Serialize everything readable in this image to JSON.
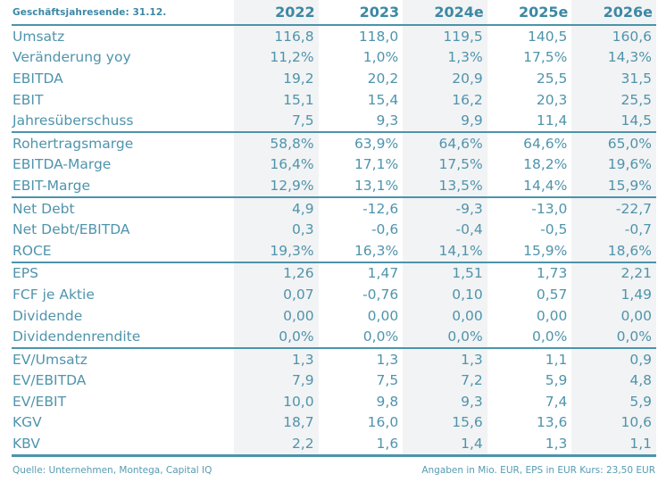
{
  "colors": {
    "accent_teal": "#4c93ab",
    "text_teal": "#4f94ac",
    "header_teal": "#3c88a4",
    "stripe_bg": "#f2f3f4",
    "page_bg": "#ffffff"
  },
  "table": {
    "corner_label": "Geschäftsjahresende: 31.12.",
    "columns": [
      "2022",
      "2023",
      "2024e",
      "2025e",
      "2026e"
    ],
    "sections": [
      {
        "rows": [
          {
            "label": "Umsatz",
            "values": [
              "116,8",
              "118,0",
              "119,5",
              "140,5",
              "160,6"
            ]
          },
          {
            "label": "Veränderung yoy",
            "values": [
              "11,2%",
              "1,0%",
              "1,3%",
              "17,5%",
              "14,3%"
            ]
          },
          {
            "label": "EBITDA",
            "values": [
              "19,2",
              "20,2",
              "20,9",
              "25,5",
              "31,5"
            ]
          },
          {
            "label": "EBIT",
            "values": [
              "15,1",
              "15,4",
              "16,2",
              "20,3",
              "25,5"
            ]
          },
          {
            "label": "Jahresüberschuss",
            "values": [
              "7,5",
              "9,3",
              "9,9",
              "11,4",
              "14,5"
            ]
          }
        ]
      },
      {
        "rows": [
          {
            "label": "Rohertragsmarge",
            "values": [
              "58,8%",
              "63,9%",
              "64,6%",
              "64,6%",
              "65,0%"
            ]
          },
          {
            "label": "EBITDA-Marge",
            "values": [
              "16,4%",
              "17,1%",
              "17,5%",
              "18,2%",
              "19,6%"
            ]
          },
          {
            "label": "EBIT-Marge",
            "values": [
              "12,9%",
              "13,1%",
              "13,5%",
              "14,4%",
              "15,9%"
            ]
          }
        ]
      },
      {
        "rows": [
          {
            "label": "Net Debt",
            "values": [
              "4,9",
              "-12,6",
              "-9,3",
              "-13,0",
              "-22,7"
            ]
          },
          {
            "label": "Net Debt/EBITDA",
            "values": [
              "0,3",
              "-0,6",
              "-0,4",
              "-0,5",
              "-0,7"
            ]
          },
          {
            "label": "ROCE",
            "values": [
              "19,3%",
              "16,3%",
              "14,1%",
              "15,9%",
              "18,6%"
            ]
          }
        ]
      },
      {
        "rows": [
          {
            "label": "EPS",
            "values": [
              "1,26",
              "1,47",
              "1,51",
              "1,73",
              "2,21"
            ]
          },
          {
            "label": "FCF je Aktie",
            "values": [
              "0,07",
              "-0,76",
              "0,10",
              "0,57",
              "1,49"
            ]
          },
          {
            "label": "Dividende",
            "values": [
              "0,00",
              "0,00",
              "0,00",
              "0,00",
              "0,00"
            ]
          },
          {
            "label": "Dividendenrendite",
            "values": [
              "0,0%",
              "0,0%",
              "0,0%",
              "0,0%",
              "0,0%"
            ]
          }
        ]
      },
      {
        "rows": [
          {
            "label": "EV/Umsatz",
            "values": [
              "1,3",
              "1,3",
              "1,3",
              "1,1",
              "0,9"
            ]
          },
          {
            "label": "EV/EBITDA",
            "values": [
              "7,9",
              "7,5",
              "7,2",
              "5,9",
              "4,8"
            ]
          },
          {
            "label": "EV/EBIT",
            "values": [
              "10,0",
              "9,8",
              "9,3",
              "7,4",
              "5,9"
            ]
          },
          {
            "label": "KGV",
            "values": [
              "18,7",
              "16,0",
              "15,6",
              "13,6",
              "10,6"
            ]
          },
          {
            "label": "KBV",
            "values": [
              "2,2",
              "1,6",
              "1,4",
              "1,3",
              "1,1"
            ]
          }
        ]
      }
    ]
  },
  "footer": {
    "left": "Quelle: Unternehmen, Montega, Capital IQ",
    "right": "Angaben in Mio. EUR, EPS in EUR Kurs: 23,50 EUR"
  },
  "chart_data": {
    "type": "table",
    "title": "Geschäftsjahresende: 31.12.",
    "columns": [
      "2022",
      "2023",
      "2024e",
      "2025e",
      "2026e"
    ],
    "rows": [
      [
        "Umsatz",
        "116,8",
        "118,0",
        "119,5",
        "140,5",
        "160,6"
      ],
      [
        "Veränderung yoy",
        "11,2%",
        "1,0%",
        "1,3%",
        "17,5%",
        "14,3%"
      ],
      [
        "EBITDA",
        "19,2",
        "20,2",
        "20,9",
        "25,5",
        "31,5"
      ],
      [
        "EBIT",
        "15,1",
        "15,4",
        "16,2",
        "20,3",
        "25,5"
      ],
      [
        "Jahresüberschuss",
        "7,5",
        "9,3",
        "9,9",
        "11,4",
        "14,5"
      ],
      [
        "Rohertragsmarge",
        "58,8%",
        "63,9%",
        "64,6%",
        "64,6%",
        "65,0%"
      ],
      [
        "EBITDA-Marge",
        "16,4%",
        "17,1%",
        "17,5%",
        "18,2%",
        "19,6%"
      ],
      [
        "EBIT-Marge",
        "12,9%",
        "13,1%",
        "13,5%",
        "14,4%",
        "15,9%"
      ],
      [
        "Net Debt",
        "4,9",
        "-12,6",
        "-9,3",
        "-13,0",
        "-22,7"
      ],
      [
        "Net Debt/EBITDA",
        "0,3",
        "-0,6",
        "-0,4",
        "-0,5",
        "-0,7"
      ],
      [
        "ROCE",
        "19,3%",
        "16,3%",
        "14,1%",
        "15,9%",
        "18,6%"
      ],
      [
        "EPS",
        "1,26",
        "1,47",
        "1,51",
        "1,73",
        "2,21"
      ],
      [
        "FCF je Aktie",
        "0,07",
        "-0,76",
        "0,10",
        "0,57",
        "1,49"
      ],
      [
        "Dividende",
        "0,00",
        "0,00",
        "0,00",
        "0,00",
        "0,00"
      ],
      [
        "Dividendenrendite",
        "0,0%",
        "0,0%",
        "0,0%",
        "0,0%",
        "0,0%"
      ],
      [
        "EV/Umsatz",
        "1,3",
        "1,3",
        "1,3",
        "1,1",
        "0,9"
      ],
      [
        "EV/EBITDA",
        "7,9",
        "7,5",
        "7,2",
        "5,9",
        "4,8"
      ],
      [
        "EV/EBIT",
        "10,0",
        "9,8",
        "9,3",
        "7,4",
        "5,9"
      ],
      [
        "KGV",
        "18,7",
        "16,0",
        "15,6",
        "13,6",
        "10,6"
      ],
      [
        "KBV",
        "2,2",
        "1,6",
        "1,4",
        "1,3",
        "1,1"
      ]
    ]
  }
}
